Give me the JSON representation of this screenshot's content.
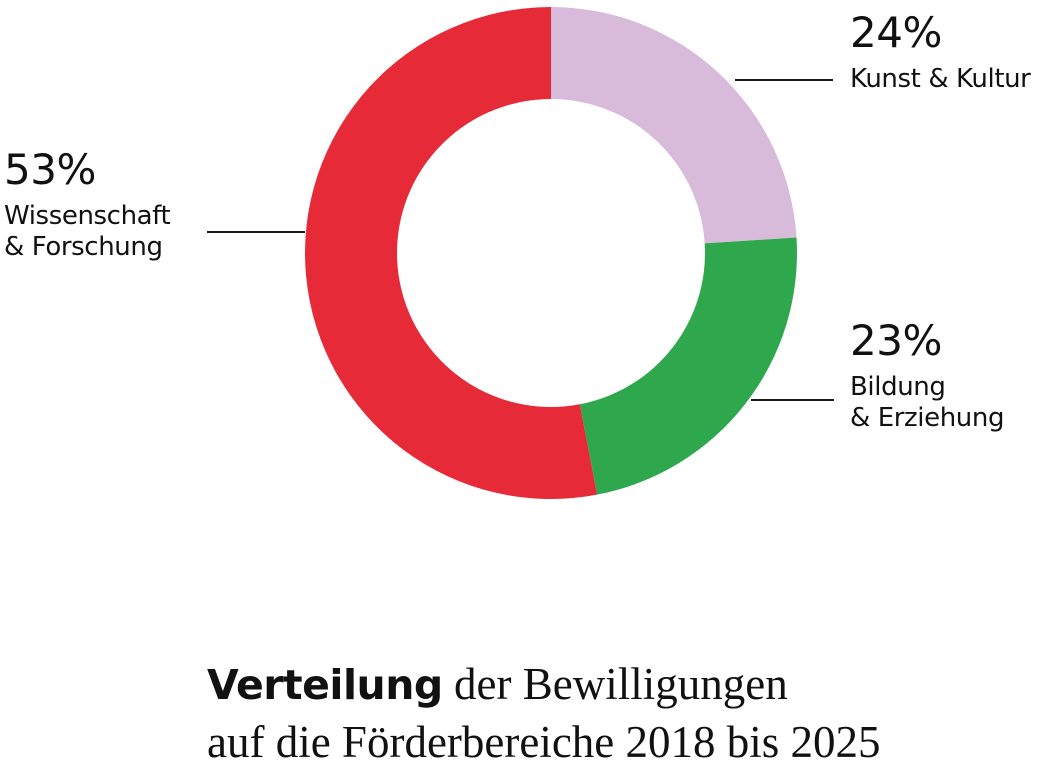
{
  "chart_data": {
    "type": "pie",
    "variant": "donut",
    "start_angle_deg": 0,
    "direction": "clockwise",
    "units": "%",
    "segments": [
      {
        "label": "Kunst & Kultur",
        "value": 24,
        "color": "#D8BBDB"
      },
      {
        "label": "Bildung & Erziehung",
        "value": 23,
        "color": "#2FA84D"
      },
      {
        "label": "Wissenschaft & Forschung",
        "value": 53,
        "color": "#E62A38"
      }
    ],
    "title": "Verteilung der Bewilligungen auf die Förderbereiche 2018 bis 2025",
    "legend_position": "callouts",
    "grid": false
  },
  "annotations": {
    "kunst": {
      "pct": "24%",
      "line1": "Kunst & Kultur"
    },
    "wissenschaft": {
      "pct": "53%",
      "line1": "Wissenschaft",
      "line2": "& Forschung"
    },
    "bildung": {
      "pct": "23%",
      "line1": "Bildung",
      "line2": "& Erziehung"
    }
  },
  "caption": {
    "bold": "Verteilung",
    "rest": " der Bewilligungen",
    "line2": "auf die Förderbereiche 2018 bis 2025"
  },
  "colors": {
    "text": "#111111",
    "leader_line": "#1a1a1a",
    "background": "#ffffff"
  }
}
